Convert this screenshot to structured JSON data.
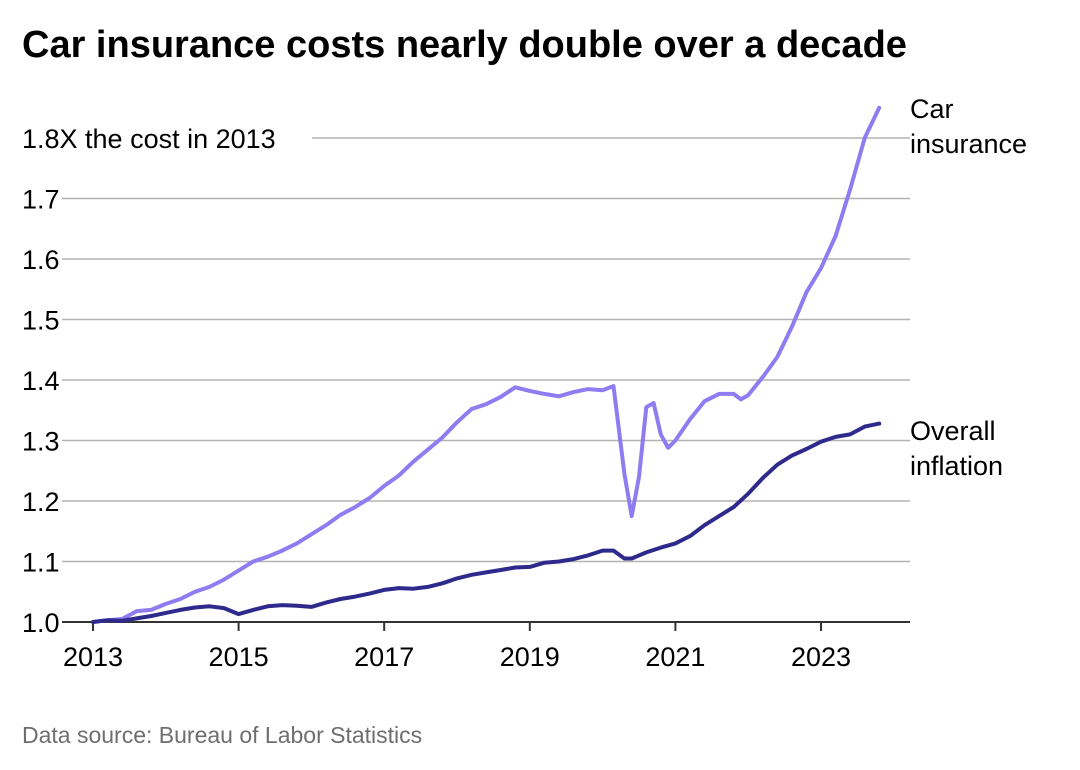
{
  "header": {
    "title": "Car insurance costs nearly double over a decade"
  },
  "footer": {
    "source": "Data source: Bureau of Labor Statistics"
  },
  "colors": {
    "car_insurance": "#8e7cf0",
    "overall_inflation": "#2e2a8c",
    "grid": "#b3b3b3",
    "axis": "#333333"
  },
  "chart_data": {
    "type": "line",
    "title": "Car insurance costs nearly double over a decade",
    "xlabel": "",
    "ylabel": "",
    "xlim": [
      2013,
      2024.3
    ],
    "ylim": [
      1.0,
      1.85
    ],
    "grid": true,
    "legend": "direct labels at right end of lines",
    "x_ticks": [
      2013,
      2015,
      2017,
      2019,
      2021,
      2023
    ],
    "x_tick_labels": [
      "2013",
      "2015",
      "2017",
      "2019",
      "2021",
      "2023"
    ],
    "y_ticks": [
      1.0,
      1.1,
      1.2,
      1.3,
      1.4,
      1.5,
      1.6,
      1.7,
      1.8
    ],
    "y_tick_labels": [
      "1.0",
      "1.1",
      "1.2",
      "1.3",
      "1.4",
      "1.5",
      "1.6",
      "1.7",
      "1.8X the cost in 2013"
    ],
    "series": [
      {
        "name": "Car insurance",
        "label_lines": [
          "Car",
          "insurance"
        ],
        "color": "#8e7cf0",
        "points": [
          [
            2013.0,
            1.0
          ],
          [
            2013.2,
            1.003
          ],
          [
            2013.4,
            1.005
          ],
          [
            2013.6,
            1.018
          ],
          [
            2013.8,
            1.02
          ],
          [
            2014.0,
            1.03
          ],
          [
            2014.2,
            1.038
          ],
          [
            2014.4,
            1.05
          ],
          [
            2014.6,
            1.058
          ],
          [
            2014.8,
            1.07
          ],
          [
            2015.0,
            1.085
          ],
          [
            2015.2,
            1.1
          ],
          [
            2015.4,
            1.108
          ],
          [
            2015.6,
            1.118
          ],
          [
            2015.8,
            1.13
          ],
          [
            2016.0,
            1.145
          ],
          [
            2016.2,
            1.16
          ],
          [
            2016.4,
            1.177
          ],
          [
            2016.6,
            1.19
          ],
          [
            2016.8,
            1.205
          ],
          [
            2017.0,
            1.225
          ],
          [
            2017.2,
            1.242
          ],
          [
            2017.4,
            1.265
          ],
          [
            2017.6,
            1.285
          ],
          [
            2017.8,
            1.305
          ],
          [
            2018.0,
            1.33
          ],
          [
            2018.2,
            1.352
          ],
          [
            2018.4,
            1.36
          ],
          [
            2018.6,
            1.372
          ],
          [
            2018.8,
            1.388
          ],
          [
            2019.0,
            1.382
          ],
          [
            2019.2,
            1.377
          ],
          [
            2019.4,
            1.373
          ],
          [
            2019.6,
            1.38
          ],
          [
            2019.8,
            1.385
          ],
          [
            2020.0,
            1.383
          ],
          [
            2020.15,
            1.39
          ],
          [
            2020.3,
            1.245
          ],
          [
            2020.4,
            1.175
          ],
          [
            2020.5,
            1.24
          ],
          [
            2020.6,
            1.355
          ],
          [
            2020.7,
            1.362
          ],
          [
            2020.8,
            1.31
          ],
          [
            2020.9,
            1.288
          ],
          [
            2021.0,
            1.3
          ],
          [
            2021.2,
            1.335
          ],
          [
            2021.4,
            1.365
          ],
          [
            2021.6,
            1.377
          ],
          [
            2021.8,
            1.377
          ],
          [
            2021.9,
            1.368
          ],
          [
            2022.0,
            1.375
          ],
          [
            2022.2,
            1.405
          ],
          [
            2022.4,
            1.438
          ],
          [
            2022.6,
            1.488
          ],
          [
            2022.8,
            1.545
          ],
          [
            2023.0,
            1.585
          ],
          [
            2023.2,
            1.638
          ],
          [
            2023.4,
            1.715
          ],
          [
            2023.6,
            1.8
          ],
          [
            2023.8,
            1.85
          ]
        ]
      },
      {
        "name": "Overall inflation",
        "label_lines": [
          "Overall",
          "inflation"
        ],
        "color": "#2e2a8c",
        "points": [
          [
            2013.0,
            1.0
          ],
          [
            2013.2,
            1.003
          ],
          [
            2013.4,
            1.002
          ],
          [
            2013.6,
            1.006
          ],
          [
            2013.8,
            1.01
          ],
          [
            2014.0,
            1.015
          ],
          [
            2014.2,
            1.02
          ],
          [
            2014.4,
            1.024
          ],
          [
            2014.6,
            1.026
          ],
          [
            2014.8,
            1.023
          ],
          [
            2015.0,
            1.013
          ],
          [
            2015.2,
            1.02
          ],
          [
            2015.4,
            1.026
          ],
          [
            2015.6,
            1.028
          ],
          [
            2015.8,
            1.027
          ],
          [
            2016.0,
            1.025
          ],
          [
            2016.2,
            1.032
          ],
          [
            2016.4,
            1.038
          ],
          [
            2016.6,
            1.042
          ],
          [
            2016.8,
            1.047
          ],
          [
            2017.0,
            1.053
          ],
          [
            2017.2,
            1.056
          ],
          [
            2017.4,
            1.055
          ],
          [
            2017.6,
            1.058
          ],
          [
            2017.8,
            1.064
          ],
          [
            2018.0,
            1.072
          ],
          [
            2018.2,
            1.078
          ],
          [
            2018.4,
            1.082
          ],
          [
            2018.6,
            1.086
          ],
          [
            2018.8,
            1.09
          ],
          [
            2019.0,
            1.091
          ],
          [
            2019.2,
            1.098
          ],
          [
            2019.4,
            1.1
          ],
          [
            2019.6,
            1.104
          ],
          [
            2019.8,
            1.11
          ],
          [
            2020.0,
            1.118
          ],
          [
            2020.15,
            1.118
          ],
          [
            2020.3,
            1.105
          ],
          [
            2020.4,
            1.105
          ],
          [
            2020.6,
            1.115
          ],
          [
            2020.8,
            1.123
          ],
          [
            2021.0,
            1.13
          ],
          [
            2021.2,
            1.142
          ],
          [
            2021.4,
            1.16
          ],
          [
            2021.6,
            1.175
          ],
          [
            2021.8,
            1.19
          ],
          [
            2022.0,
            1.212
          ],
          [
            2022.2,
            1.238
          ],
          [
            2022.4,
            1.26
          ],
          [
            2022.6,
            1.275
          ],
          [
            2022.8,
            1.286
          ],
          [
            2023.0,
            1.298
          ],
          [
            2023.2,
            1.306
          ],
          [
            2023.4,
            1.31
          ],
          [
            2023.6,
            1.323
          ],
          [
            2023.8,
            1.328
          ]
        ]
      }
    ]
  }
}
